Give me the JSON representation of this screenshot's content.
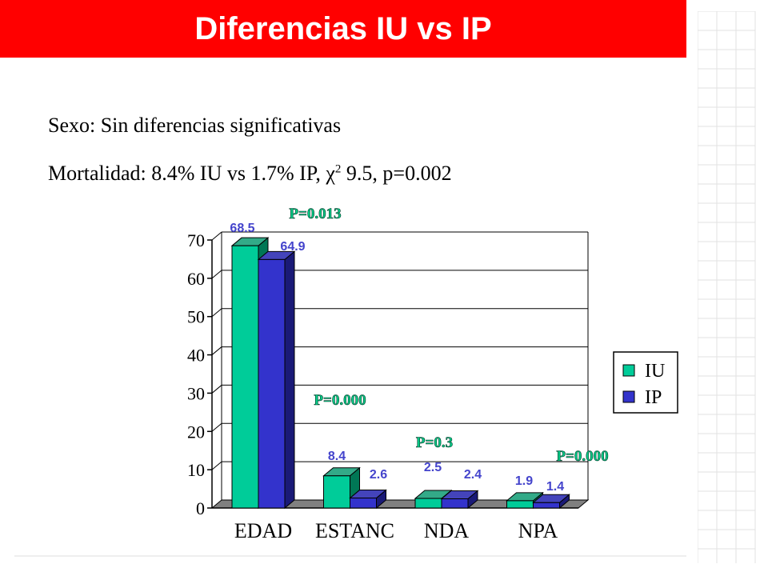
{
  "slide": {
    "title": "Diferencias IU vs IP",
    "line1": "Sexo: Sin diferencias significativas",
    "line2_prefix": "Mortalidad: 8.4% IU vs 1.7% IP, χ",
    "line2_sup": "2",
    "line2_suffix": " 9.5, p=0.002"
  },
  "colors": {
    "title_bg": "#ff0000",
    "iu_front": "#00cc99",
    "iu_top": "#33aa88",
    "iu_side": "#007755",
    "ip_front": "#3333cc",
    "ip_top": "#4444bb",
    "ip_side": "#1a1a77",
    "label_blue": "#4444cc",
    "pvalue_green": "#00cc88"
  },
  "chart_data": {
    "type": "bar",
    "categories": [
      "EDAD",
      "ESTANC",
      "NDA",
      "NPA"
    ],
    "series": [
      {
        "name": "IU",
        "values": [
          68.5,
          8.4,
          2.5,
          1.9
        ],
        "labels": [
          "68.5",
          "8.4",
          "2.5",
          "1.9"
        ]
      },
      {
        "name": "IP",
        "values": [
          64.9,
          2.6,
          2.4,
          1.4
        ],
        "labels": [
          "64.9",
          "2.6",
          "2.4",
          "1.4"
        ]
      }
    ],
    "p_values": [
      "P=0.013",
      "P=0.000",
      "P=0.3",
      "P=0.000"
    ],
    "y_ticks": [
      "0",
      "10",
      "20",
      "30",
      "40",
      "50",
      "60",
      "70"
    ],
    "ylim": [
      0,
      70
    ],
    "grid": true,
    "legend_position": "right",
    "title": "",
    "xlabel": "",
    "ylabel": ""
  }
}
